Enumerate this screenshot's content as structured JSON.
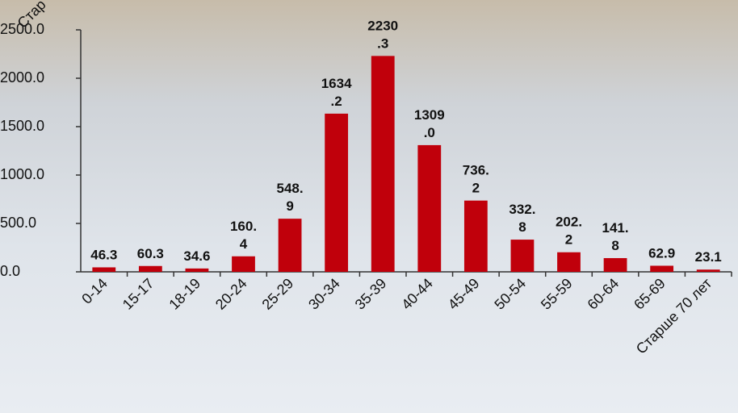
{
  "chart_data": {
    "type": "bar",
    "annotation": "Стар",
    "categories": [
      "0-14",
      "15-17",
      "18-19",
      "20-24",
      "25-29",
      "30-34",
      "35-39",
      "40-44",
      "45-49",
      "50-54",
      "55-59",
      "60-64",
      "65-69",
      "Старше 70 лет"
    ],
    "values": [
      46.3,
      60.3,
      34.6,
      160.4,
      548.9,
      1634.2,
      2230.3,
      1309.0,
      736.2,
      332.8,
      202.2,
      141.8,
      62.9,
      23.1
    ],
    "value_labels": [
      "46.3",
      "60.3",
      "34.6",
      "160.4",
      "548.9",
      "1634.2",
      "2230.3",
      "1309.0",
      "736.2",
      "332.8",
      "202.2",
      "141.8",
      "62.9",
      "23.1"
    ],
    "color": "#c0000b",
    "ylim": [
      0,
      2500
    ],
    "yticks": [
      {
        "value": 0,
        "label": "0.0"
      },
      {
        "value": 500,
        "label": "500.0"
      },
      {
        "value": 1000,
        "label": "1000.0"
      },
      {
        "value": 1500,
        "label": "1500.0"
      },
      {
        "value": 2000,
        "label": "2000.0"
      },
      {
        "value": 2500,
        "label": "2500.0"
      }
    ],
    "grid": false
  }
}
